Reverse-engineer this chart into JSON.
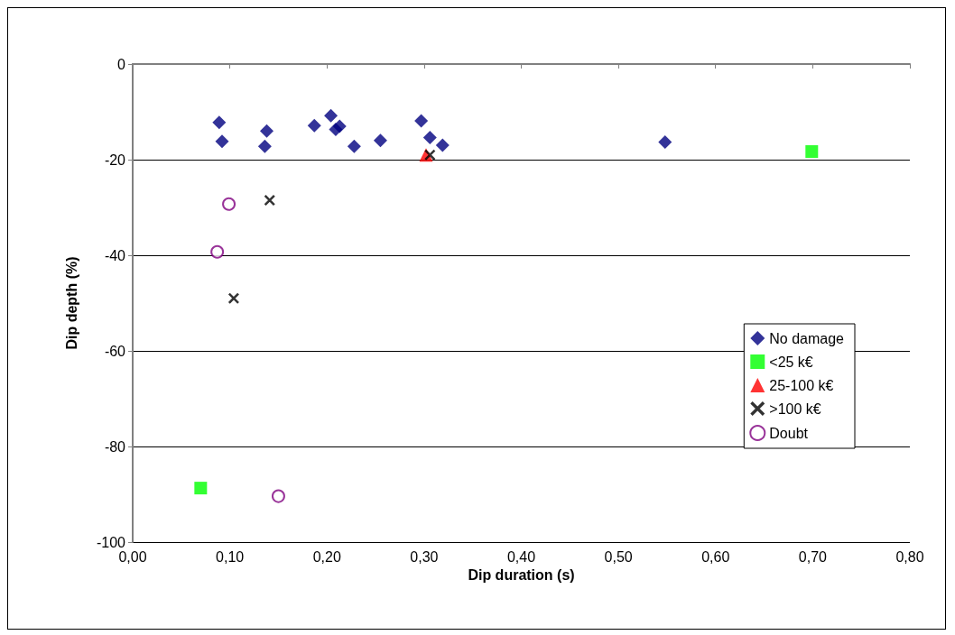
{
  "chart_data": {
    "type": "scatter",
    "xlabel": "Dip duration (s)",
    "ylabel": "Dip depth (%)",
    "xlim": [
      0,
      0.8
    ],
    "xticks": [
      {
        "value": 0,
        "label": "0,00"
      },
      {
        "value": 0.1,
        "label": "0,10"
      },
      {
        "value": 0.2,
        "label": "0,20"
      },
      {
        "value": 0.3,
        "label": "0,30"
      },
      {
        "value": 0.4,
        "label": "0,40"
      },
      {
        "value": 0.5,
        "label": "0,50"
      },
      {
        "value": 0.6,
        "label": "0,60"
      },
      {
        "value": 0.7,
        "label": "0,70"
      },
      {
        "value": 0.8,
        "label": "0,80"
      }
    ],
    "ylim": [
      -100,
      0
    ],
    "yticks": [
      -100,
      -80,
      -60,
      -40,
      -20,
      0
    ],
    "grid": "y",
    "legend": "right",
    "series": [
      {
        "name": "No damage",
        "color": "#000080",
        "marker": "diamond",
        "x": [
          0.089,
          0.092,
          0.138,
          0.136,
          0.187,
          0.204,
          0.209,
          0.213,
          0.228,
          0.255,
          0.297,
          0.306,
          0.319,
          0.548
        ],
        "values": [
          -12.2,
          -16.2,
          -14.0,
          -17.2,
          -12.9,
          -10.8,
          -13.7,
          -13.0,
          -17.2,
          -16.0,
          -11.9,
          -15.4,
          -17.0,
          -16.3
        ]
      },
      {
        "name": "<25 k€",
        "color": "#00ff00",
        "marker": "square",
        "x": [
          0.699,
          0.07
        ],
        "values": [
          -18.3,
          -88.7
        ]
      },
      {
        "name": "25-100 k€",
        "color": "#ff0000",
        "marker": "triangle",
        "x": [
          0.302
        ],
        "values": [
          -19.0
        ]
      },
      {
        "name": ">100 k€",
        "color": "#000000",
        "marker": "cross",
        "x": [
          0.306,
          0.141,
          0.104
        ],
        "values": [
          -19.0,
          -28.5,
          -49.0
        ]
      },
      {
        "name": "Doubt",
        "color": "#800080",
        "marker": "circle",
        "x": [
          0.099,
          0.087,
          0.15
        ],
        "values": [
          -29.3,
          -39.3,
          -90.4
        ]
      }
    ]
  }
}
